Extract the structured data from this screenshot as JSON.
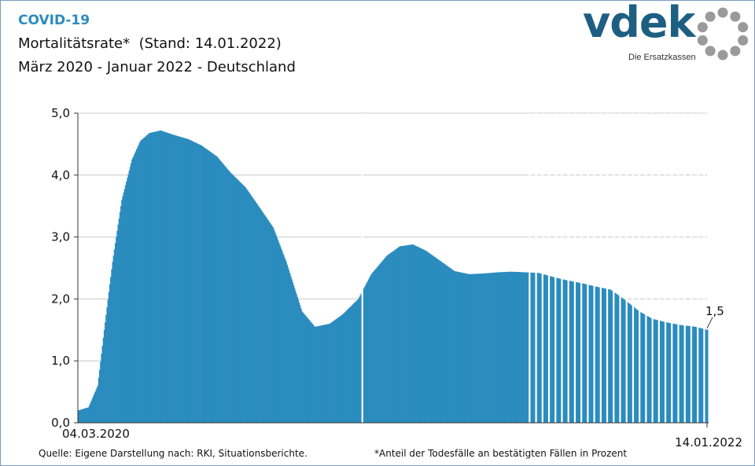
{
  "header": {
    "topic": "COVID-19",
    "title": "Mortalitätsrate*  (Stand: 14.01.2022)",
    "subtitle": "März 2020 - Januar 2022 - Deutschland"
  },
  "logo": {
    "word": "vdek",
    "tagline": "Die Ersatzkassen",
    "colors": {
      "word": "#1d5f82",
      "ring": "#9a9a9a"
    }
  },
  "footer": {
    "source": "Quelle: Eigene Darstellung nach: RKI, Situationsberichte.",
    "footnote": "*Anteil der Todesfälle an bestätigten Fällen in Prozent"
  },
  "chart_data": {
    "type": "area",
    "ylim": [
      0,
      5
    ],
    "yticks": [
      "0,0",
      "1,0",
      "2,0",
      "3,0",
      "4,0",
      "5,0"
    ],
    "xlabels": {
      "start": "04.03.2020",
      "end": "14.01.2022"
    },
    "grid": true,
    "color": "#2b8cbe",
    "end_label": "1,5",
    "series": {
      "x": [
        "2020-03-04",
        "2020-03-15",
        "2020-03-25",
        "2020-04-01",
        "2020-04-10",
        "2020-04-20",
        "2020-05-01",
        "2020-05-10",
        "2020-05-20",
        "2020-06-01",
        "2020-06-15",
        "2020-07-01",
        "2020-07-15",
        "2020-08-01",
        "2020-08-15",
        "2020-09-01",
        "2020-09-15",
        "2020-10-01",
        "2020-10-15",
        "2020-11-01",
        "2020-11-15",
        "2020-12-01",
        "2020-12-15",
        "2021-01-01",
        "2021-01-15",
        "2021-02-01",
        "2021-02-15",
        "2021-03-01",
        "2021-03-15",
        "2021-04-01",
        "2021-04-15",
        "2021-05-01",
        "2021-05-15",
        "2021-06-01",
        "2021-06-15",
        "2021-07-01",
        "2021-07-15",
        "2021-08-01",
        "2021-08-15",
        "2021-09-01",
        "2021-09-15",
        "2021-10-01",
        "2021-10-15",
        "2021-11-01",
        "2021-11-15",
        "2021-12-01",
        "2021-12-15",
        "2022-01-01",
        "2022-01-14"
      ],
      "y": [
        0.2,
        0.25,
        0.6,
        1.5,
        2.6,
        3.6,
        4.25,
        4.55,
        4.68,
        4.72,
        4.65,
        4.58,
        4.48,
        4.3,
        4.05,
        3.8,
        3.5,
        3.15,
        2.6,
        1.8,
        1.55,
        1.6,
        1.75,
        2.0,
        2.4,
        2.7,
        2.85,
        2.88,
        2.78,
        2.6,
        2.45,
        2.4,
        2.41,
        2.43,
        2.44,
        2.43,
        2.42,
        2.35,
        2.3,
        2.25,
        2.2,
        2.15,
        2.0,
        1.8,
        1.68,
        1.62,
        1.58,
        1.55,
        1.5
      ]
    },
    "sparse_ranges": [
      [
        "2021-01-01",
        "2021-01-12"
      ],
      [
        "2021-07-01",
        "2022-01-14"
      ]
    ]
  }
}
